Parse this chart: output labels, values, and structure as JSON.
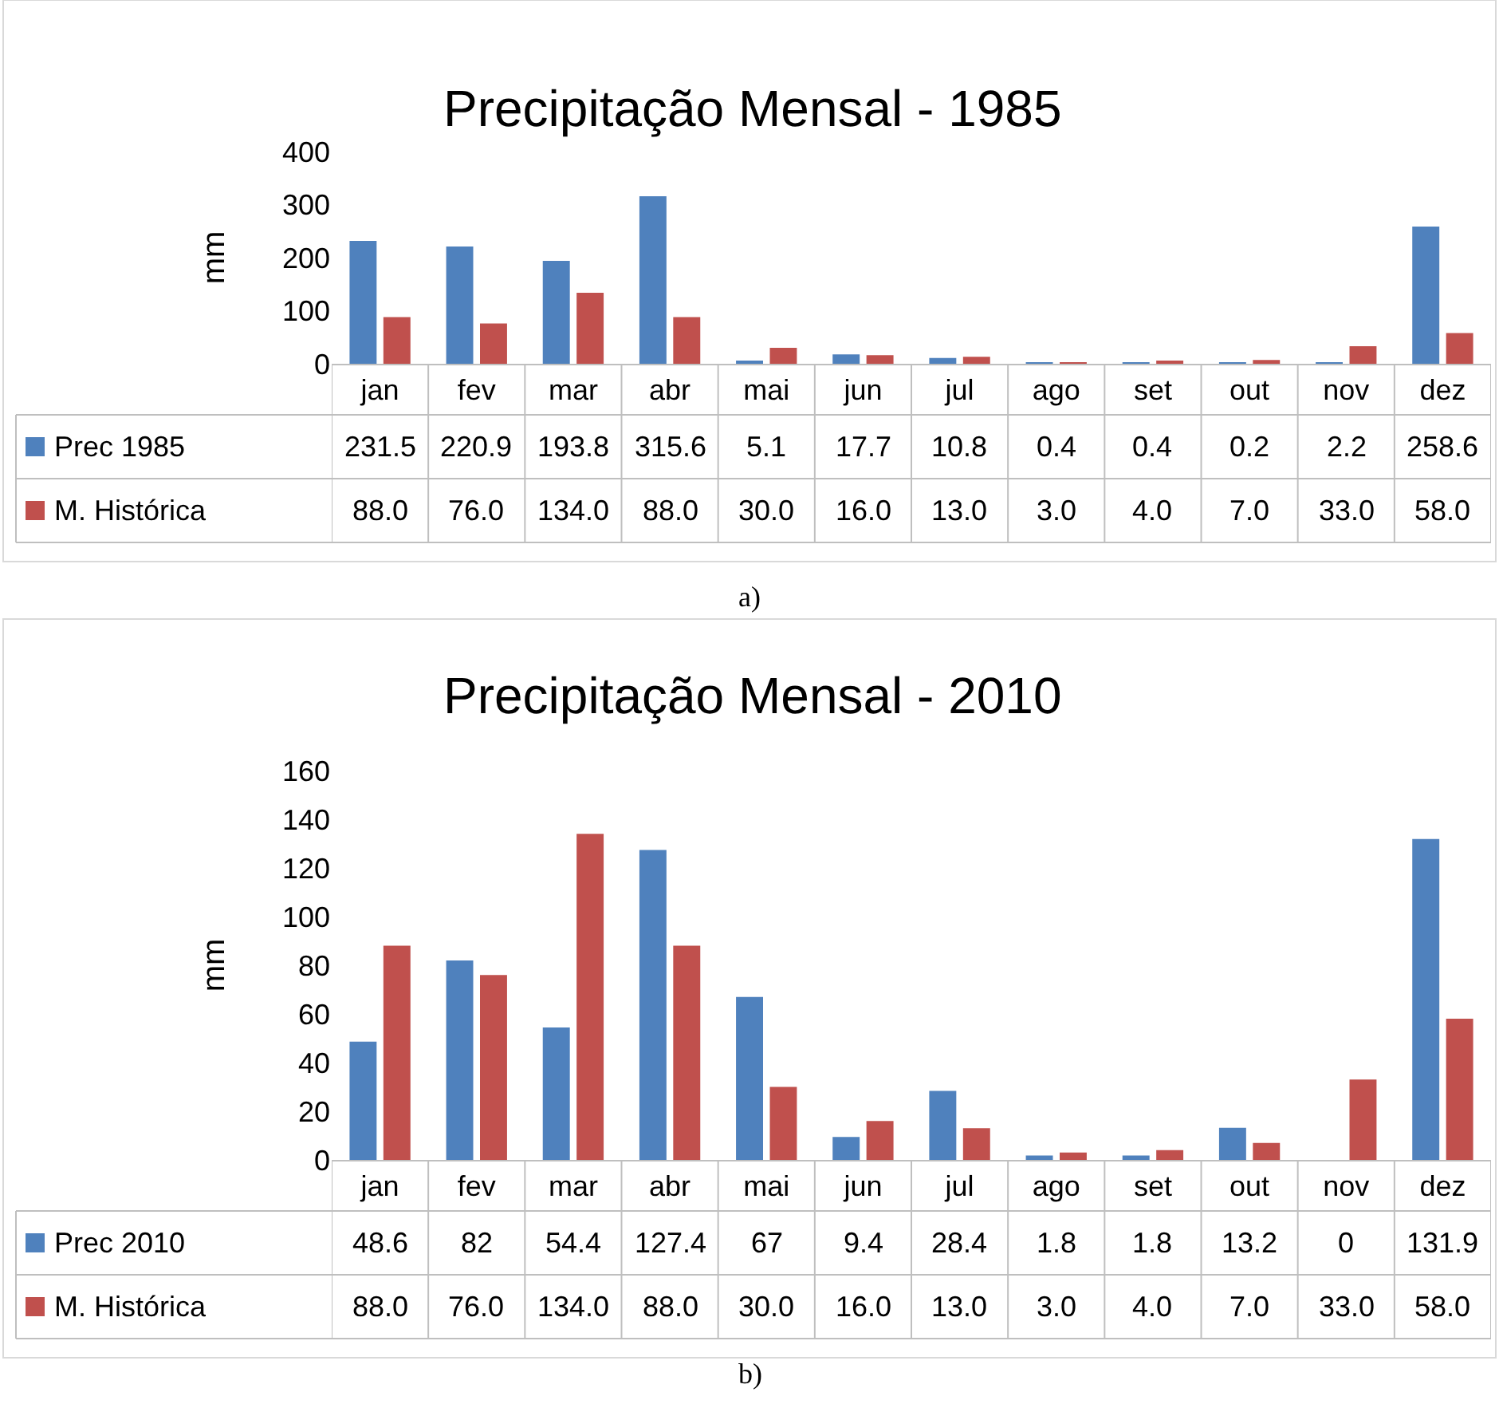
{
  "chart_data": [
    {
      "type": "bar",
      "title": "Precipitação Mensal - 1985",
      "ylabel": "mm",
      "categories": [
        "jan",
        "fev",
        "mar",
        "abr",
        "mai",
        "jun",
        "jul",
        "ago",
        "set",
        "out",
        "nov",
        "dez"
      ],
      "ylim": [
        0,
        400
      ],
      "yticks": [
        0,
        100,
        200,
        300,
        400
      ],
      "grid": false,
      "legend": "bottom left",
      "annotations": [
        "a)"
      ],
      "series": [
        {
          "name": "Prec 1985",
          "color": "#4f81bd",
          "values": [
            231.5,
            220.9,
            193.8,
            315.6,
            5.1,
            17.7,
            10.8,
            0.4,
            0.4,
            0.2,
            2.2,
            258.6
          ],
          "value_labels": [
            "231.5",
            "220.9",
            "193.8",
            "315.6",
            "5.1",
            "17.7",
            "10.8",
            "0.4",
            "0.4",
            "0.2",
            "2.2",
            "258.6"
          ]
        },
        {
          "name": "M. Histórica",
          "color": "#c0504d",
          "values": [
            88,
            76,
            134,
            88,
            30,
            16,
            13,
            3,
            4,
            7,
            33,
            58
          ],
          "value_labels": [
            "88.0",
            "76.0",
            "134.0",
            "88.0",
            "30.0",
            "16.0",
            "13.0",
            "3.0",
            "4.0",
            "7.0",
            "33.0",
            "58.0"
          ]
        }
      ]
    },
    {
      "type": "bar",
      "title": "Precipitação Mensal - 2010",
      "ylabel": "mm",
      "categories": [
        "jan",
        "fev",
        "mar",
        "abr",
        "mai",
        "jun",
        "jul",
        "ago",
        "set",
        "out",
        "nov",
        "dez"
      ],
      "ylim": [
        0,
        160
      ],
      "yticks": [
        0,
        20,
        40,
        60,
        80,
        100,
        120,
        140,
        160
      ],
      "grid": false,
      "legend": "bottom left",
      "annotations": [
        "b)"
      ],
      "series": [
        {
          "name": "Prec 2010",
          "color": "#4f81bd",
          "values": [
            48.6,
            82,
            54.4,
            127.4,
            67,
            9.4,
            28.4,
            1.8,
            1.8,
            13.2,
            0,
            131.9
          ],
          "value_labels": [
            "48.6",
            "82",
            "54.4",
            "127.4",
            "67",
            "9.4",
            "28.4",
            "1.8",
            "1.8",
            "13.2",
            "0",
            "131.9"
          ]
        },
        {
          "name": "M. Histórica",
          "color": "#c0504d",
          "values": [
            88,
            76,
            134,
            88,
            30,
            16,
            13,
            3,
            4,
            7,
            33,
            58
          ],
          "value_labels": [
            "88.0",
            "76.0",
            "134.0",
            "88.0",
            "30.0",
            "16.0",
            "13.0",
            "3.0",
            "4.0",
            "7.0",
            "33.0",
            "58.0"
          ]
        }
      ]
    }
  ]
}
